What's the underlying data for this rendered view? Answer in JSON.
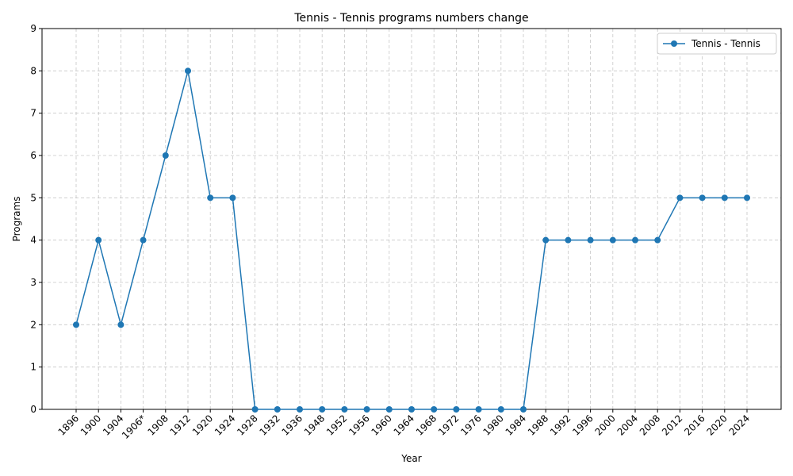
{
  "chart_data": {
    "type": "line",
    "title": "Tennis - Tennis programs numbers change",
    "xlabel": "Year",
    "ylabel": "Programs",
    "categories": [
      "1896",
      "1900",
      "1904",
      "1906*",
      "1908",
      "1912",
      "1920",
      "1924",
      "1928",
      "1932",
      "1936",
      "1948",
      "1952",
      "1956",
      "1960",
      "1964",
      "1968",
      "1972",
      "1976",
      "1980",
      "1984",
      "1988",
      "1992",
      "1996",
      "2000",
      "2004",
      "2008",
      "2012",
      "2016",
      "2020",
      "2024"
    ],
    "series": [
      {
        "name": "Tennis - Tennis",
        "color": "#1f77b4",
        "values": [
          2,
          4,
          2,
          4,
          6,
          8,
          5,
          5,
          0,
          0,
          0,
          0,
          0,
          0,
          0,
          0,
          0,
          0,
          0,
          0,
          0,
          4,
          4,
          4,
          4,
          4,
          4,
          5,
          5,
          5,
          5
        ]
      }
    ],
    "ylim": [
      0,
      9
    ],
    "yticks": [
      0,
      1,
      2,
      3,
      4,
      5,
      6,
      7,
      8,
      9
    ],
    "grid": true,
    "legend_position": "top-right"
  }
}
